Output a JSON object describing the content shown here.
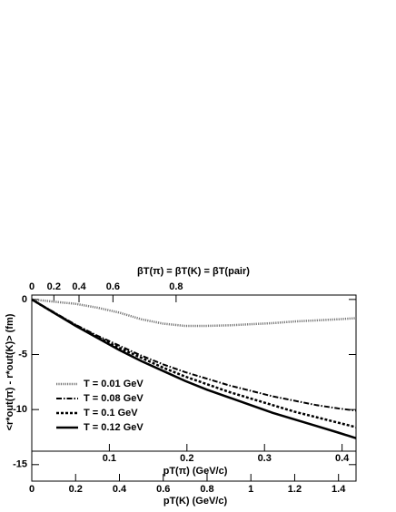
{
  "chart_data": {
    "type": "line",
    "xlabel": "pT(K) (GeV/c)",
    "ylabel": "<r*out(π) - r*out(K)> (fm)",
    "x": [
      0,
      0.1,
      0.2,
      0.3,
      0.4,
      0.5,
      0.6,
      0.7,
      0.8,
      0.9,
      1.0,
      1.1,
      1.2,
      1.3,
      1.4,
      1.48
    ],
    "xlim": [
      0,
      1.48
    ],
    "xticks": [
      0,
      0.2,
      0.4,
      0.6,
      0.8,
      1,
      1.2,
      1.4
    ],
    "ylim": [
      -16.5,
      0.4
    ],
    "yticks": [
      0,
      -5,
      -10,
      -15
    ],
    "pion_axis": {
      "label": "pT(π) (GeV/c)",
      "xlim": [
        0,
        0.418
      ],
      "xticks": [
        0.1,
        0.2,
        0.3,
        0.4
      ]
    },
    "velocity_axis": {
      "label": "βT(π) = βT(K) = βT(pair)",
      "scale": "velocity",
      "mass": 0.494,
      "ticks": [
        0,
        0.2,
        0.4,
        0.6,
        0.8
      ]
    },
    "legend": "lower-left",
    "series": [
      {
        "name": "T = 0.01 GeV",
        "color": "#777777",
        "style": "dotted",
        "values": [
          0,
          -0.2,
          -0.4,
          -0.75,
          -1.2,
          -1.8,
          -2.2,
          -2.4,
          -2.4,
          -2.35,
          -2.25,
          -2.15,
          -2.0,
          -1.9,
          -1.8,
          -1.7
        ]
      },
      {
        "name": "T = 0.08 GeV",
        "color": "#000000",
        "style": "dash-dot",
        "values": [
          0,
          -1.15,
          -2.3,
          -3.3,
          -4.2,
          -5.1,
          -5.9,
          -6.6,
          -7.2,
          -7.8,
          -8.3,
          -8.8,
          -9.2,
          -9.6,
          -9.9,
          -10.1
        ]
      },
      {
        "name": "T = 0.1 GeV",
        "color": "#000000",
        "style": "dashed",
        "values": [
          0,
          -1.2,
          -2.35,
          -3.4,
          -4.4,
          -5.3,
          -6.2,
          -7.0,
          -7.7,
          -8.4,
          -9.0,
          -9.6,
          -10.2,
          -10.7,
          -11.2,
          -11.6
        ]
      },
      {
        "name": "T = 0.12 GeV",
        "color": "#000000",
        "style": "solid",
        "values": [
          0,
          -1.2,
          -2.4,
          -3.5,
          -4.6,
          -5.6,
          -6.5,
          -7.4,
          -8.2,
          -8.9,
          -9.6,
          -10.3,
          -10.9,
          -11.5,
          -12.1,
          -12.6
        ]
      }
    ]
  }
}
